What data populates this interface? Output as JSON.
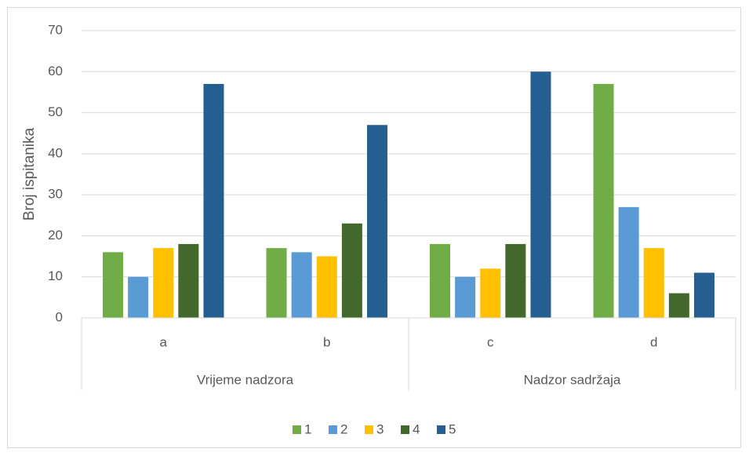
{
  "chart_data": {
    "type": "bar",
    "y_label": "Broj ispitanika",
    "groups": [
      {
        "name": "Vrijeme nadzora",
        "categories": [
          "a",
          "b"
        ]
      },
      {
        "name": "Nadzor sadržaja",
        "categories": [
          "c",
          "d"
        ]
      }
    ],
    "series": [
      {
        "name": "1",
        "color": "#70ad47",
        "values": [
          16,
          17,
          18,
          57
        ]
      },
      {
        "name": "2",
        "color": "#5b9bd5",
        "values": [
          10,
          16,
          10,
          27
        ]
      },
      {
        "name": "3",
        "color": "#ffc000",
        "values": [
          17,
          15,
          12,
          17
        ]
      },
      {
        "name": "4",
        "color": "#43682b",
        "values": [
          18,
          23,
          18,
          6
        ]
      },
      {
        "name": "5",
        "color": "#255e91",
        "values": [
          57,
          47,
          60,
          11
        ]
      }
    ],
    "ylim": [
      0,
      70
    ],
    "yticks": [
      0,
      10,
      20,
      30,
      40,
      50,
      60,
      70
    ],
    "grid": true,
    "legend": "bottom"
  }
}
